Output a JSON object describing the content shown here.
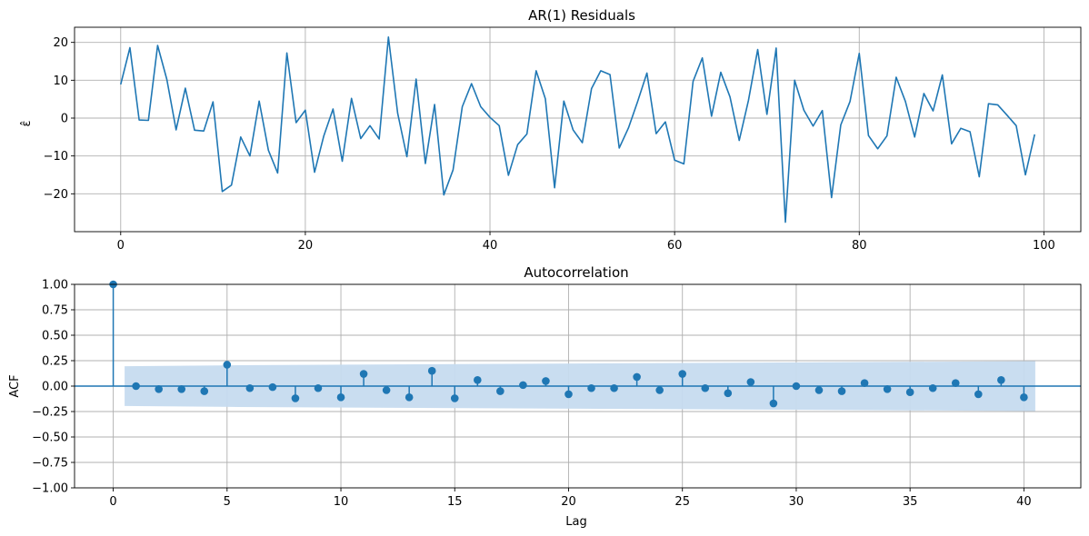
{
  "chart_data": [
    {
      "type": "line",
      "title": "AR(1) Residuals",
      "xlabel": "",
      "ylabel": "ε̂",
      "xlim": [
        -5,
        104
      ],
      "ylim": [
        -30,
        24
      ],
      "x_ticks": [
        0,
        20,
        40,
        60,
        80,
        100
      ],
      "y_ticks": [
        -20,
        -10,
        0,
        10,
        20
      ],
      "grid": true,
      "color": "#1f77b4",
      "series": [
        {
          "values": [
            8.9,
            18.6,
            -0.5,
            -0.6,
            19.2,
            10.2,
            -3.1,
            7.9,
            -3.2,
            -3.4,
            4.3,
            -19.4,
            -17.7,
            -5.0,
            -10.0,
            4.5,
            -8.5,
            -14.5,
            17.2,
            -1.2,
            2.1,
            -14.3,
            -4.7,
            2.4,
            -11.4,
            5.2,
            -5.4,
            -2.0,
            -5.5,
            21.4,
            1.3,
            -10.2,
            10.3,
            -12.0,
            3.6,
            -20.3,
            -13.7,
            3.0,
            9.1,
            3.0,
            0.2,
            -2.0,
            -15.1,
            -7.0,
            -4.2,
            12.5,
            5.1,
            -18.4,
            4.5,
            -3.1,
            -6.5,
            7.8,
            12.5,
            11.5,
            -7.9,
            -2.6,
            4.4,
            11.9,
            -4.1,
            -1.0,
            -11.1,
            -12.1,
            9.7,
            15.9,
            0.5,
            12.1,
            5.6,
            -5.9,
            4.7,
            18.1,
            1.0,
            18.5,
            -27.5,
            10.0,
            2.1,
            -2.1,
            2.0,
            -21.0,
            -1.8,
            4.4,
            17.1,
            -4.6,
            -8.1,
            -4.7,
            10.8,
            4.4,
            -5.0,
            6.5,
            1.9,
            11.4,
            -6.8,
            -2.7,
            -3.6,
            -15.5,
            3.8,
            3.5,
            0.8,
            -2.0,
            -15.0,
            -4.3
          ]
        }
      ]
    },
    {
      "type": "stem",
      "title": "Autocorrelation",
      "xlabel": "Lag",
      "ylabel": "ACF",
      "xlim": [
        -1.7,
        42.5
      ],
      "ylim": [
        -1.0,
        1.0
      ],
      "x_ticks": [
        0,
        5,
        10,
        15,
        20,
        25,
        30,
        35,
        40
      ],
      "y_ticks": [
        -1.0,
        -0.75,
        -0.5,
        -0.25,
        0.0,
        0.25,
        0.5,
        0.75,
        1.0
      ],
      "grid": true,
      "color": "#1f77b4",
      "confint_color": "#c6dbef",
      "lags": [
        0,
        1,
        2,
        3,
        4,
        5,
        6,
        7,
        8,
        9,
        10,
        11,
        12,
        13,
        14,
        15,
        16,
        17,
        18,
        19,
        20,
        21,
        22,
        23,
        24,
        25,
        26,
        27,
        28,
        29,
        30,
        31,
        32,
        33,
        34,
        35,
        36,
        37,
        38,
        39,
        40
      ],
      "acf": [
        1.0,
        0.0,
        -0.03,
        -0.03,
        -0.05,
        0.21,
        -0.02,
        -0.01,
        -0.12,
        -0.02,
        -0.11,
        0.12,
        -0.04,
        -0.11,
        0.15,
        -0.12,
        0.06,
        -0.05,
        0.01,
        0.05,
        -0.08,
        -0.02,
        -0.02,
        0.09,
        -0.04,
        0.12,
        -0.02,
        -0.07,
        0.04,
        -0.17,
        0.0,
        -0.04,
        -0.05,
        0.03,
        -0.03,
        -0.06,
        -0.02,
        0.03,
        -0.08,
        0.06,
        -0.11
      ],
      "confint": {
        "lags": [
          0.5,
          5.5,
          40.5
        ],
        "upper": [
          0.195,
          0.205,
          0.245
        ],
        "lower": [
          -0.195,
          -0.205,
          -0.245
        ]
      }
    }
  ]
}
